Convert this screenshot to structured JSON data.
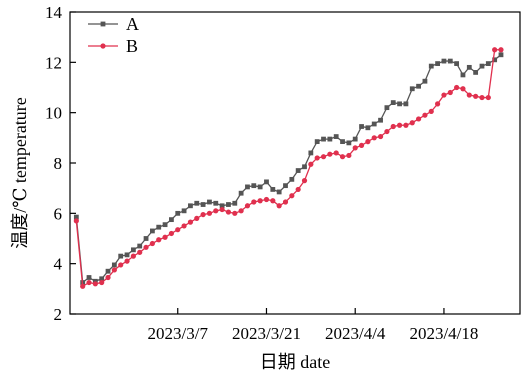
{
  "chart_data": {
    "type": "line",
    "title": "",
    "xlabel": "日期 date",
    "ylabel": "温度/℃ temperature",
    "x_tick_labels": [
      "2023/3/7",
      "2023/3/21",
      "2023/4/4",
      "2023/4/18"
    ],
    "x_tick_dates": [
      "2023-03-07",
      "2023-03-21",
      "2023-04-04",
      "2023-04-18"
    ],
    "x_range": [
      "2023-02-18",
      "2023-04-30"
    ],
    "y_ticks": [
      2,
      4,
      6,
      8,
      10,
      12,
      14
    ],
    "ylim": [
      2,
      14
    ],
    "grid": false,
    "legend_position": "top-left",
    "x": [
      "2023-02-19",
      "2023-02-20",
      "2023-02-21",
      "2023-02-22",
      "2023-02-23",
      "2023-02-24",
      "2023-02-25",
      "2023-02-26",
      "2023-02-27",
      "2023-02-28",
      "2023-03-01",
      "2023-03-02",
      "2023-03-03",
      "2023-03-04",
      "2023-03-05",
      "2023-03-06",
      "2023-03-07",
      "2023-03-08",
      "2023-03-09",
      "2023-03-10",
      "2023-03-11",
      "2023-03-12",
      "2023-03-13",
      "2023-03-14",
      "2023-03-15",
      "2023-03-16",
      "2023-03-17",
      "2023-03-18",
      "2023-03-19",
      "2023-03-20",
      "2023-03-21",
      "2023-03-22",
      "2023-03-23",
      "2023-03-24",
      "2023-03-25",
      "2023-03-26",
      "2023-03-27",
      "2023-03-28",
      "2023-03-29",
      "2023-03-30",
      "2023-03-31",
      "2023-04-01",
      "2023-04-02",
      "2023-04-03",
      "2023-04-04",
      "2023-04-05",
      "2023-04-06",
      "2023-04-07",
      "2023-04-08",
      "2023-04-09",
      "2023-04-10",
      "2023-04-11",
      "2023-04-12",
      "2023-04-13",
      "2023-04-14",
      "2023-04-15",
      "2023-04-16",
      "2023-04-17",
      "2023-04-18",
      "2023-04-19",
      "2023-04-20",
      "2023-04-21",
      "2023-04-22",
      "2023-04-23",
      "2023-04-24",
      "2023-04-25",
      "2023-04-26",
      "2023-04-27"
    ],
    "series": [
      {
        "name": "A",
        "color": "#555555",
        "marker": "square",
        "values": [
          5.85,
          3.25,
          3.45,
          3.3,
          3.4,
          3.7,
          3.95,
          4.3,
          4.35,
          4.55,
          4.7,
          5.0,
          5.3,
          5.45,
          5.55,
          5.75,
          6.0,
          6.1,
          6.3,
          6.4,
          6.35,
          6.45,
          6.4,
          6.3,
          6.35,
          6.4,
          6.8,
          7.05,
          7.1,
          7.05,
          7.25,
          6.95,
          6.85,
          7.1,
          7.35,
          7.7,
          7.85,
          8.4,
          8.85,
          8.95,
          8.95,
          9.05,
          8.85,
          8.8,
          8.95,
          9.45,
          9.4,
          9.55,
          9.7,
          10.2,
          10.4,
          10.35,
          10.35,
          10.95,
          11.05,
          11.25,
          11.85,
          11.95,
          12.05,
          12.05,
          11.95,
          11.5,
          11.8,
          11.6,
          11.85,
          11.95,
          12.1,
          12.3
        ]
      },
      {
        "name": "B",
        "color": "#e0304e",
        "marker": "circle",
        "values": [
          5.7,
          3.1,
          3.25,
          3.2,
          3.25,
          3.45,
          3.75,
          3.95,
          4.1,
          4.3,
          4.45,
          4.65,
          4.8,
          4.95,
          5.05,
          5.2,
          5.35,
          5.5,
          5.65,
          5.8,
          5.95,
          6.0,
          6.1,
          6.15,
          6.05,
          6.0,
          6.1,
          6.3,
          6.45,
          6.5,
          6.55,
          6.5,
          6.3,
          6.45,
          6.7,
          6.95,
          7.3,
          7.95,
          8.2,
          8.25,
          8.35,
          8.4,
          8.25,
          8.3,
          8.6,
          8.7,
          8.85,
          9.0,
          9.05,
          9.25,
          9.45,
          9.5,
          9.5,
          9.6,
          9.75,
          9.9,
          10.05,
          10.35,
          10.7,
          10.8,
          11.0,
          10.95,
          10.7,
          10.65,
          10.6,
          10.6,
          12.5,
          12.5
        ]
      }
    ]
  }
}
